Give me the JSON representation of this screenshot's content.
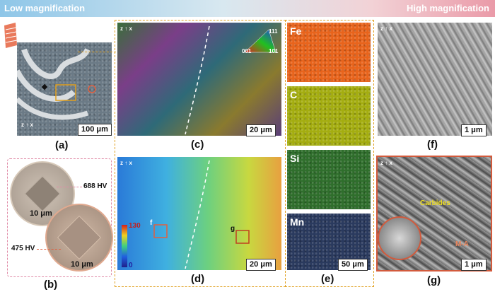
{
  "banner": {
    "left": "Low magnification",
    "right": "High magnification"
  },
  "panels": {
    "a": {
      "label": "(a)",
      "scale": "100 μm"
    },
    "b": {
      "label": "(b)",
      "hv_top": "688 HV",
      "hv_bottom": "475 HV",
      "scale_top": "10 μm",
      "scale_bottom": "10 μm"
    },
    "c": {
      "label": "(c)",
      "scale": "20 μm",
      "ipf": {
        "top": "111",
        "left": "001",
        "right": "101"
      }
    },
    "d": {
      "label": "(d)",
      "scale": "20 μm",
      "colorbar_max": "130",
      "colorbar_min": "0",
      "box_f": "f",
      "box_g": "g"
    },
    "e": {
      "label": "(e)",
      "maps": [
        "Fe",
        "C",
        "Si",
        "Mn"
      ],
      "scale": "50 μm"
    },
    "f": {
      "label": "(f)",
      "scale": "1 μm"
    },
    "g": {
      "label": "(g)",
      "scale": "1 μm",
      "carbides": "Carbides",
      "ma": "M-A"
    }
  },
  "colors": {
    "fe": "#e8641c",
    "c": "#a4ad10",
    "si": "#2f6e2c",
    "mn": "#2a3a5e",
    "dash_box": "#e0a020",
    "pink_dash": "#e08aa6",
    "red_frame": "#d25a3c"
  }
}
